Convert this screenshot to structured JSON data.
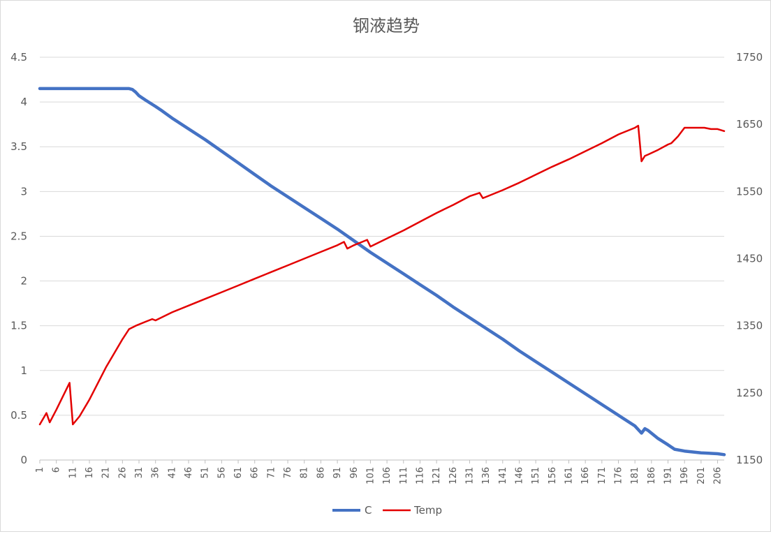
{
  "chart_data": {
    "type": "line",
    "title": "钢液趋势",
    "xlabel": "",
    "ylabel": "",
    "x_range": [
      1,
      208
    ],
    "x_tick_labels": [
      "1",
      "6",
      "11",
      "16",
      "21",
      "26",
      "31",
      "36",
      "41",
      "46",
      "51",
      "56",
      "61",
      "66",
      "71",
      "76",
      "81",
      "86",
      "91",
      "96",
      "101",
      "106",
      "111",
      "116",
      "121",
      "126",
      "131",
      "136",
      "141",
      "146",
      "151",
      "156",
      "161",
      "166",
      "171",
      "176",
      "181",
      "186",
      "191",
      "196",
      "201",
      "206"
    ],
    "left_axis": {
      "ylim": [
        0,
        4.5
      ],
      "tick_labels": [
        "0",
        "0.5",
        "1",
        "1.5",
        "2",
        "2.5",
        "3",
        "3.5",
        "4",
        "4.5"
      ]
    },
    "right_axis": {
      "ylim": [
        1150,
        1750
      ],
      "tick_labels": [
        "1150",
        "1250",
        "1350",
        "1450",
        "1550",
        "1650",
        "1750"
      ]
    },
    "grid": true,
    "legend_position": "bottom",
    "series": [
      {
        "name": "C",
        "axis": "left",
        "color": "#4472C4",
        "x": [
          1,
          28,
          29,
          30,
          31,
          33,
          36,
          38,
          41,
          46,
          51,
          56,
          61,
          66,
          71,
          76,
          81,
          86,
          91,
          96,
          101,
          106,
          111,
          116,
          121,
          126,
          131,
          136,
          141,
          146,
          151,
          156,
          161,
          166,
          171,
          176,
          181,
          183,
          184,
          185,
          188,
          191,
          193,
          196,
          201,
          206,
          208
        ],
        "values": [
          4.15,
          4.15,
          4.14,
          4.11,
          4.07,
          4.02,
          3.95,
          3.9,
          3.82,
          3.7,
          3.58,
          3.45,
          3.32,
          3.19,
          3.06,
          2.94,
          2.82,
          2.7,
          2.58,
          2.45,
          2.32,
          2.2,
          2.08,
          1.96,
          1.84,
          1.71,
          1.59,
          1.47,
          1.35,
          1.22,
          1.1,
          0.98,
          0.86,
          0.74,
          0.62,
          0.5,
          0.38,
          0.3,
          0.35,
          0.33,
          0.24,
          0.17,
          0.12,
          0.1,
          0.08,
          0.07,
          0.06
        ]
      },
      {
        "name": "Temp",
        "axis": "right",
        "color": "#E30000",
        "x": [
          1,
          3,
          4,
          6,
          10,
          11,
          13,
          16,
          21,
          26,
          28,
          30,
          33,
          35,
          36,
          41,
          46,
          51,
          56,
          61,
          66,
          71,
          76,
          81,
          86,
          91,
          93,
          94,
          96,
          100,
          101,
          106,
          111,
          116,
          121,
          126,
          131,
          134,
          135,
          136,
          141,
          146,
          151,
          156,
          161,
          166,
          171,
          176,
          181,
          182,
          183,
          184,
          185,
          188,
          191,
          192,
          194,
          196,
          201,
          202,
          204,
          206,
          208
        ],
        "values": [
          1203,
          1220,
          1206,
          1225,
          1265,
          1203,
          1215,
          1240,
          1288,
          1330,
          1345,
          1350,
          1356,
          1360,
          1358,
          1370,
          1380,
          1390,
          1400,
          1410,
          1420,
          1430,
          1440,
          1450,
          1460,
          1470,
          1475,
          1465,
          1470,
          1478,
          1468,
          1480,
          1492,
          1505,
          1518,
          1530,
          1543,
          1548,
          1540,
          1542,
          1552,
          1563,
          1575,
          1587,
          1598,
          1610,
          1622,
          1635,
          1645,
          1648,
          1595,
          1603,
          1605,
          1612,
          1620,
          1622,
          1632,
          1645,
          1645,
          1645,
          1643,
          1643,
          1640
        ]
      }
    ]
  }
}
